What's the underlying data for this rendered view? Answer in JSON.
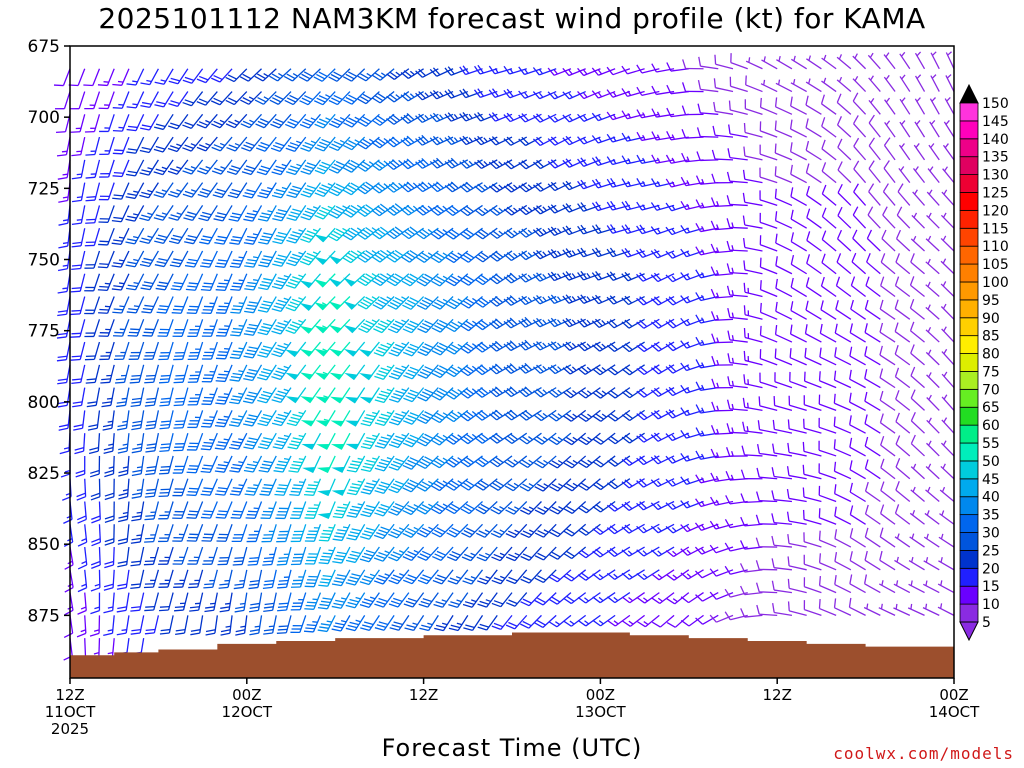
{
  "title": "2025101112 NAM3KM forecast wind profile (kt) for KAMA",
  "xlabel": "Forecast Time (UTC)",
  "credit": "coolwx.com/models",
  "chart_data": {
    "type": "wind-barb-time-height",
    "title": "2025101112 NAM3KM forecast wind profile (kt) for KAMA",
    "xlabel": "Forecast Time (UTC)",
    "ylabel": "",
    "y_axis": {
      "ticks": [
        675,
        700,
        725,
        750,
        775,
        800,
        825,
        850,
        875
      ],
      "range": [
        675,
        897
      ],
      "inverted": true,
      "units": "hPa"
    },
    "x_axis": {
      "range_hours": [
        0,
        60
      ],
      "ticks": [
        {
          "hour": 0,
          "lines": [
            "12Z",
            "11OCT",
            "2025"
          ]
        },
        {
          "hour": 12,
          "lines": [
            "00Z",
            "12OCT"
          ]
        },
        {
          "hour": 24,
          "lines": [
            "12Z"
          ]
        },
        {
          "hour": 36,
          "lines": [
            "00Z",
            "13OCT"
          ]
        },
        {
          "hour": 48,
          "lines": [
            "12Z"
          ]
        },
        {
          "hour": 60,
          "lines": [
            "00Z",
            "14OCT"
          ]
        }
      ]
    },
    "colorbar": {
      "levels": [
        5,
        10,
        15,
        20,
        25,
        30,
        35,
        40,
        45,
        50,
        55,
        60,
        65,
        70,
        75,
        80,
        85,
        90,
        95,
        100,
        105,
        110,
        115,
        120,
        125,
        130,
        135,
        140,
        145,
        150
      ],
      "colors": [
        "#8a2be2",
        "#6a00ff",
        "#2020ff",
        "#0033cc",
        "#0055dd",
        "#0066ee",
        "#0088ee",
        "#00aaee",
        "#00ccdd",
        "#00eebb",
        "#00ee88",
        "#22dd22",
        "#66ee22",
        "#aaee22",
        "#ddee00",
        "#ffee00",
        "#ffd000",
        "#ffb000",
        "#ff9900",
        "#ff8000",
        "#ff6600",
        "#ff4400",
        "#ff2200",
        "#ff0000",
        "#ee0033",
        "#e00060",
        "#ee0088",
        "#ff00bb",
        "#ff33dd",
        "#000000"
      ]
    },
    "terrain": {
      "color": "#9c4f2d",
      "surface_pressure_hpa": [
        {
          "hour": 0,
          "p": 889
        },
        {
          "hour": 3,
          "p": 888
        },
        {
          "hour": 6,
          "p": 887
        },
        {
          "hour": 10,
          "p": 885
        },
        {
          "hour": 14,
          "p": 884
        },
        {
          "hour": 18,
          "p": 883
        },
        {
          "hour": 24,
          "p": 882
        },
        {
          "hour": 30,
          "p": 881
        },
        {
          "hour": 34,
          "p": 881
        },
        {
          "hour": 38,
          "p": 882
        },
        {
          "hour": 42,
          "p": 883
        },
        {
          "hour": 46,
          "p": 884
        },
        {
          "hour": 50,
          "p": 885
        },
        {
          "hour": 54,
          "p": 886
        },
        {
          "hour": 60,
          "p": 887
        }
      ]
    },
    "wind_field": {
      "time_step_hours": 1,
      "pressure_step_hpa": 8,
      "columns": [
        {
          "hour": 0,
          "dir_deg": 200,
          "speed_kt": 15
        },
        {
          "hour": 6,
          "dir_deg": 215,
          "speed_kt": 25
        },
        {
          "hour": 12,
          "dir_deg": 220,
          "speed_kt": 30
        },
        {
          "hour": 18,
          "dir_deg": 230,
          "speed_kt": 45
        },
        {
          "hour": 24,
          "dir_deg": 240,
          "speed_kt": 35
        },
        {
          "hour": 30,
          "dir_deg": 250,
          "speed_kt": 25
        },
        {
          "hour": 36,
          "dir_deg": 255,
          "speed_kt": 20
        },
        {
          "hour": 42,
          "dir_deg": 260,
          "speed_kt": 15
        },
        {
          "hour": 48,
          "dir_deg": 300,
          "speed_kt": 10
        },
        {
          "hour": 54,
          "dir_deg": 320,
          "speed_kt": 10
        },
        {
          "hour": 60,
          "dir_deg": 330,
          "speed_kt": 5
        }
      ]
    }
  }
}
